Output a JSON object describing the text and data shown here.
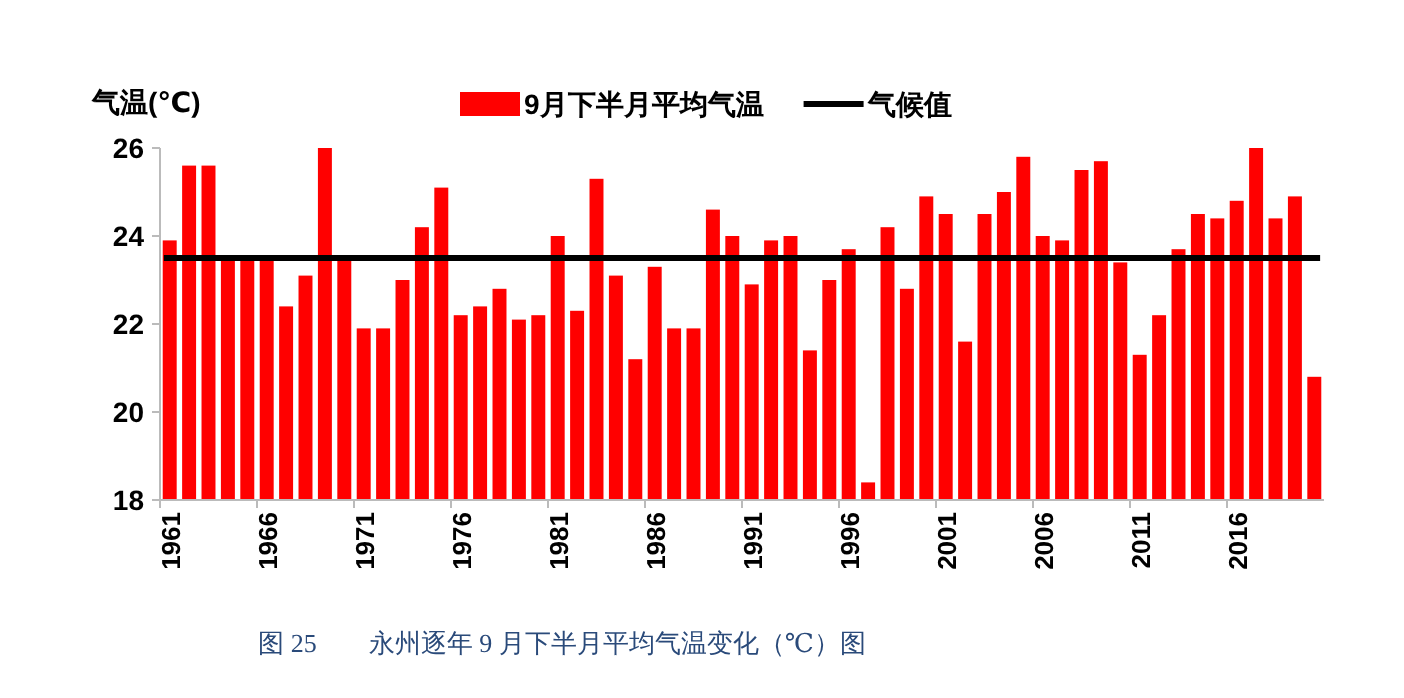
{
  "chart_data": {
    "type": "bar",
    "ylabel": "气温(℃)",
    "categories": [
      "1961",
      null,
      null,
      null,
      null,
      "1966",
      null,
      null,
      null,
      null,
      "1971",
      null,
      null,
      null,
      null,
      "1976",
      null,
      null,
      null,
      null,
      "1981",
      null,
      null,
      null,
      null,
      "1986",
      null,
      null,
      null,
      null,
      "1991",
      null,
      null,
      null,
      null,
      "1996",
      null,
      null,
      null,
      null,
      "2001",
      null,
      null,
      null,
      null,
      "2006",
      null,
      null,
      null,
      null,
      "2011",
      null,
      null,
      null,
      null,
      "2016",
      null,
      null,
      null,
      null
    ],
    "series": [
      {
        "name": "9月下半月平均气温",
        "color": "#ff0000",
        "values": [
          23.9,
          25.6,
          25.6,
          23.5,
          23.5,
          23.5,
          22.4,
          23.1,
          26.0,
          23.5,
          21.9,
          21.9,
          23.0,
          24.2,
          25.1,
          22.2,
          22.4,
          22.8,
          22.1,
          22.2,
          24.0,
          22.3,
          25.3,
          23.1,
          21.2,
          23.3,
          21.9,
          21.9,
          24.6,
          24.0,
          22.9,
          23.9,
          24.0,
          21.4,
          23.0,
          23.7,
          18.4,
          24.2,
          22.8,
          24.9,
          24.5,
          21.6,
          24.5,
          25.0,
          25.8,
          24.0,
          23.9,
          25.5,
          25.7,
          23.4,
          21.3,
          22.2,
          23.7,
          24.5,
          24.4,
          24.8,
          26.0,
          24.4,
          24.9,
          20.8
        ]
      }
    ],
    "ref_lines": [
      {
        "axis": "y",
        "value": 23.5,
        "label": "气候值",
        "color": "#000000"
      }
    ],
    "ylim": [
      18,
      26
    ],
    "yticks": [
      18,
      20,
      22,
      24,
      26
    ],
    "legend": "top",
    "annotations": [
      "图 25　　永州逐年 9 月下半月平均气温变化（℃）图"
    ]
  }
}
